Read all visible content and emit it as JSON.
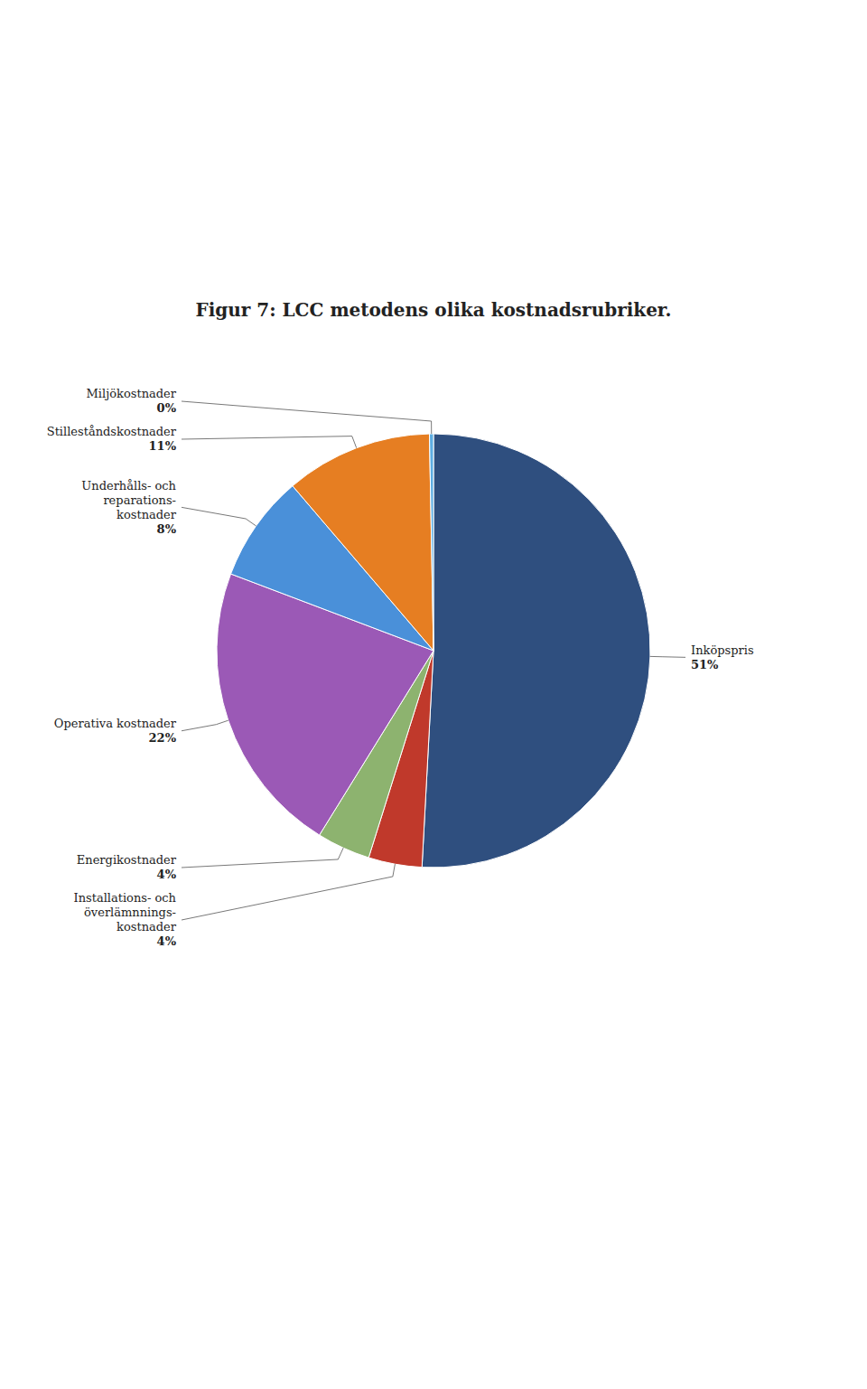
{
  "chart_data": {
    "type": "pie",
    "title": "Figur 7: LCC metodens olika kostnadsrubriker.",
    "categories": [
      "Inköpspris",
      "Installations- och\növerlämnnings-\nkostnader",
      "Energikostnader",
      "Operativa kostnader",
      "Underhålls- och\nreparations-\nkostnader",
      "Stilleståndskostnader",
      "Miljökostnader"
    ],
    "values": [
      51,
      4,
      4,
      22,
      8,
      11,
      0.3
    ],
    "value_labels": [
      "51%",
      "4%",
      "4%",
      "22%",
      "8%",
      "11%",
      "0%"
    ],
    "colors": [
      "#2f4f7f",
      "#c0392b",
      "#8db36f",
      "#9b59b6",
      "#4a90d9",
      "#e67e22",
      "#5dade2"
    ],
    "data_labels": true
  }
}
